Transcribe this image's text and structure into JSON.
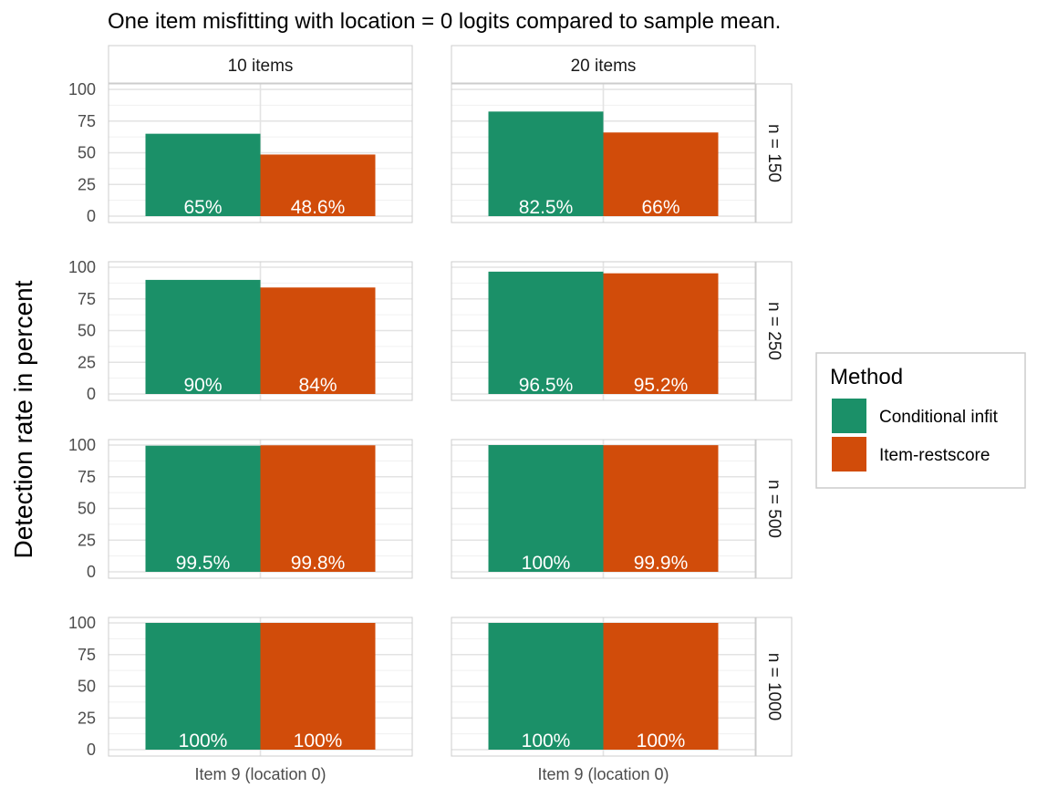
{
  "chart_data": {
    "type": "bar",
    "title": "One item misfitting with location = 0 logits compared to sample mean.",
    "xlabel": "",
    "ylabel": "Detection rate in percent",
    "ylim": [
      0,
      100
    ],
    "y_ticks": [
      0,
      25,
      50,
      75,
      100
    ],
    "grid": true,
    "x_category": "Item 9 (location 0)",
    "facet_columns": [
      "10 items",
      "20 items"
    ],
    "facet_rows": [
      "n = 150",
      "n = 250",
      "n = 500",
      "n = 1000"
    ],
    "legend": {
      "title": "Method",
      "placement": "right",
      "entries": [
        {
          "label": "Conditional infit",
          "color": "#1b9068"
        },
        {
          "label": "Item-restscore",
          "color": "#d14c0a"
        }
      ]
    },
    "panels": [
      {
        "row": "n = 150",
        "column": "10 items",
        "values": [
          65,
          48.6
        ],
        "labels": [
          "65%",
          "48.6%"
        ]
      },
      {
        "row": "n = 150",
        "column": "20 items",
        "values": [
          82.5,
          66
        ],
        "labels": [
          "82.5%",
          "66%"
        ]
      },
      {
        "row": "n = 250",
        "column": "10 items",
        "values": [
          90,
          84
        ],
        "labels": [
          "90%",
          "84%"
        ]
      },
      {
        "row": "n = 250",
        "column": "20 items",
        "values": [
          96.5,
          95.2
        ],
        "labels": [
          "96.5%",
          "95.2%"
        ]
      },
      {
        "row": "n = 500",
        "column": "10 items",
        "values": [
          99.5,
          99.8
        ],
        "labels": [
          "99.5%",
          "99.8%"
        ]
      },
      {
        "row": "n = 500",
        "column": "20 items",
        "values": [
          100,
          99.9
        ],
        "labels": [
          "100%",
          "99.9%"
        ]
      },
      {
        "row": "n = 1000",
        "column": "10 items",
        "values": [
          100,
          100
        ],
        "labels": [
          "100%",
          "100%"
        ]
      },
      {
        "row": "n = 1000",
        "column": "20 items",
        "values": [
          100,
          100
        ],
        "labels": [
          "100%",
          "100%"
        ]
      }
    ]
  }
}
